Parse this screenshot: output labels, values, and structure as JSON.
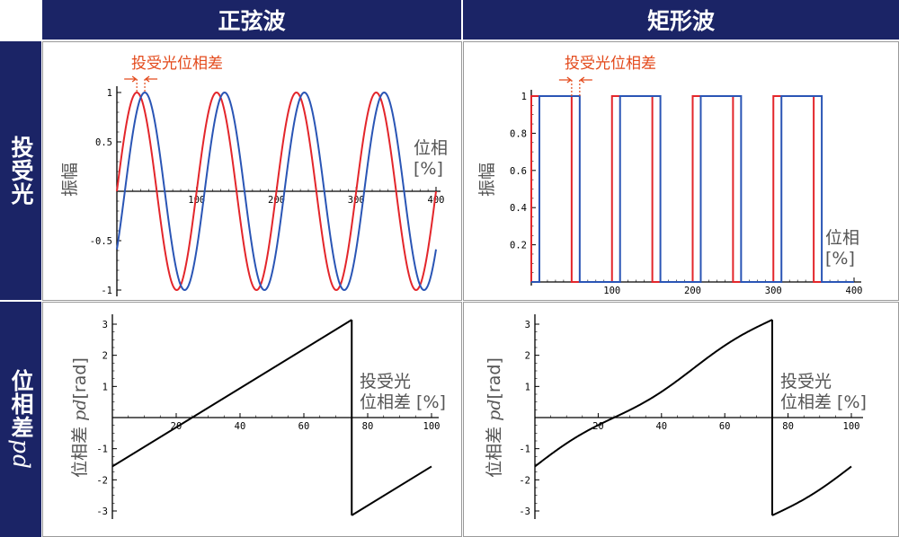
{
  "headers": {
    "columns": [
      "正弦波",
      "矩形波"
    ],
    "rows": [
      "投受光",
      "位相差"
    ],
    "row2_suffix": "pd"
  },
  "colors": {
    "header_bg": "#1b2466",
    "emitted": "#e3262b",
    "received": "#2a55b5",
    "phase_line": "#000000",
    "annotation": "#e34a1c"
  },
  "annotation": "投受光位相差",
  "chart_data": [
    {
      "id": "sine-light",
      "type": "line",
      "xlabel": [
        "位相",
        "[%]"
      ],
      "ylabel": "振幅",
      "xlim": [
        0,
        400
      ],
      "ylim": [
        -1.05,
        1.05
      ],
      "xticks": [
        100,
        200,
        300,
        400
      ],
      "yticks": [
        -1,
        -0.5,
        0.5,
        1
      ],
      "yticklabels": [
        "-1",
        "-0.5",
        "0.5",
        "1"
      ],
      "series": [
        {
          "color": "red",
          "function": "sin(2*pi*x/100)",
          "x_range": [
            0,
            400
          ]
        },
        {
          "color": "blue",
          "function": "sin(2*pi*(x-10)/100)",
          "x_range": [
            0,
            400
          ]
        }
      ]
    },
    {
      "id": "square-light",
      "type": "line",
      "xlabel": [
        "位相",
        "[%]"
      ],
      "ylabel": "振幅",
      "xlim": [
        0,
        400
      ],
      "ylim": [
        0,
        1.03
      ],
      "xticks": [
        100,
        200,
        300,
        400
      ],
      "yticks": [
        0.2,
        0.4,
        0.6,
        0.8,
        1
      ],
      "yticklabels": [
        "0.2",
        "0.4",
        "0.6",
        "0.8",
        "1"
      ],
      "series": [
        {
          "color": "red",
          "pulses": [
            [
              0,
              50
            ],
            [
              100,
              150
            ],
            [
              200,
              250
            ],
            [
              300,
              350
            ]
          ]
        },
        {
          "color": "blue",
          "pulses": [
            [
              10,
              60
            ],
            [
              110,
              160
            ],
            [
              210,
              260
            ],
            [
              310,
              360
            ]
          ]
        }
      ]
    },
    {
      "id": "sine-phase",
      "type": "line",
      "xlabel": [
        "投受光",
        "位相差 [%]"
      ],
      "ylabel": [
        "位相差 ",
        "pd",
        "[rad]"
      ],
      "xlim": [
        0,
        100
      ],
      "ylim": [
        -3.3,
        3.3
      ],
      "xticks": [
        20,
        40,
        60,
        80,
        100
      ],
      "yticks": [
        -3,
        -2,
        -1,
        1,
        2,
        3
      ],
      "yticklabels": [
        "-3",
        "-2",
        "-1",
        "1",
        "2",
        "3"
      ],
      "series": [
        {
          "color": "black",
          "points": [
            [
              0,
              -1.57
            ],
            [
              75,
              3.14
            ]
          ]
        },
        {
          "color": "black",
          "points": [
            [
              75,
              -3.14
            ],
            [
              100,
              -1.57
            ]
          ]
        }
      ]
    },
    {
      "id": "square-phase",
      "type": "line",
      "xlabel": [
        "投受光",
        "位相差 [%]"
      ],
      "ylabel": [
        "位相差 ",
        "pd",
        "[rad]"
      ],
      "xlim": [
        0,
        100
      ],
      "ylim": [
        -3.3,
        3.3
      ],
      "xticks": [
        20,
        40,
        60,
        80,
        100
      ],
      "yticks": [
        -3,
        -2,
        -1,
        1,
        2,
        3
      ],
      "yticklabels": [
        "-3",
        "-2",
        "-1",
        "1",
        "2",
        "3"
      ],
      "series": [
        {
          "color": "black",
          "function": "-pi/2 + 2*pi*x/100 + 0.12*sin(4*pi*x/100)",
          "x_range": [
            0,
            75
          ]
        },
        {
          "color": "black",
          "function": "-pi/2 + 2*pi*(x-100)/100 + 0.12*sin(4*pi*x/100)",
          "x_range": [
            75,
            100
          ]
        }
      ]
    }
  ]
}
